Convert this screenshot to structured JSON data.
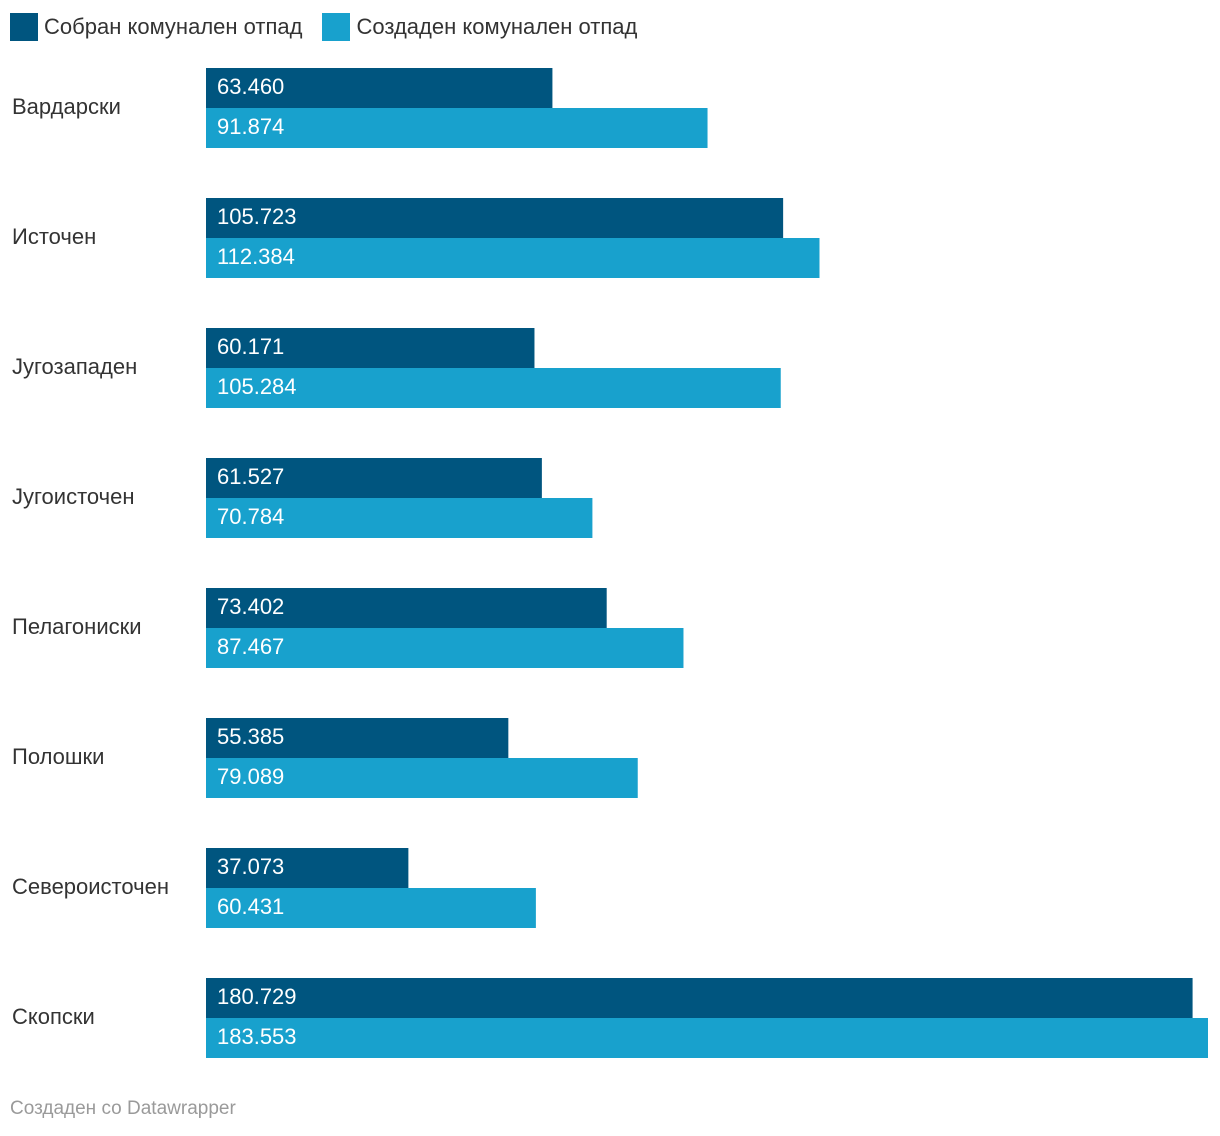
{
  "chart_data": {
    "type": "bar",
    "orientation": "horizontal",
    "categories": [
      "Вардарски",
      "Источен",
      "Југозападен",
      "Југоисточен",
      "Пелагониски",
      "Полошки",
      "Североисточен",
      "Скопски"
    ],
    "series": [
      {
        "name": "Собран комунален отпад",
        "color": "#00557f",
        "values": [
          63460,
          105723,
          60171,
          61527,
          73402,
          55385,
          37073,
          180729
        ],
        "labels": [
          "63.460",
          "105.723",
          "60.171",
          "61.527",
          "73.402",
          "55.385",
          "37.073",
          "180.729"
        ]
      },
      {
        "name": "Создаден комунален отпад",
        "color": "#18a1cd",
        "values": [
          91874,
          112384,
          105284,
          70784,
          87467,
          79089,
          60431,
          183553
        ],
        "labels": [
          "91.874",
          "112.384",
          "105.284",
          "70.784",
          "87.467",
          "79.089",
          "60.431",
          "183.553"
        ]
      }
    ],
    "xlim": [
      0,
      183553
    ],
    "grid": false,
    "legend": "top-left"
  },
  "footer": {
    "text": "Создаден со Datawrapper"
  }
}
